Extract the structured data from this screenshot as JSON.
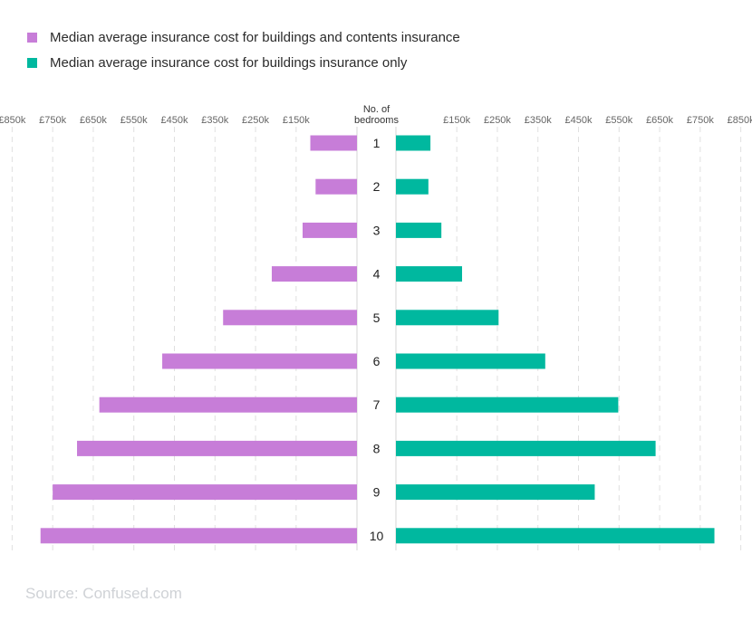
{
  "legend": [
    {
      "label": "Median average insurance cost for buildings and contents insurance",
      "color": "#c77dd8"
    },
    {
      "label": "Median average insurance cost for buildings insurance only",
      "color": "#00b89f"
    }
  ],
  "source": "Source: Confused.com",
  "chart_data": {
    "type": "bar",
    "orientation": "horizontal-butterfly",
    "center_label_line1": "No. of",
    "center_label_line2": "bedrooms",
    "categories": [
      "1",
      "2",
      "3",
      "4",
      "5",
      "6",
      "7",
      "8",
      "9",
      "10"
    ],
    "left_ticks": [
      "£850k",
      "£750k",
      "£650k",
      "£550k",
      "£450k",
      "£350k",
      "£250k",
      "£150k"
    ],
    "right_ticks": [
      "£150k",
      "£250k",
      "£350k",
      "£450k",
      "£550k",
      "£650k",
      "£750k",
      "£850k"
    ],
    "series": [
      {
        "name": "Median average insurance cost for buildings and contents insurance",
        "side": "left",
        "color": "#c77dd8",
        "values": [
          115,
          102,
          134,
          210,
          330,
          480,
          635,
          690,
          750,
          780
        ]
      },
      {
        "name": "Median average insurance cost for buildings insurance only",
        "side": "right",
        "color": "#00b89f",
        "values": [
          85,
          80,
          112,
          163,
          253,
          368,
          548,
          640,
          490,
          785
        ]
      }
    ]
  }
}
